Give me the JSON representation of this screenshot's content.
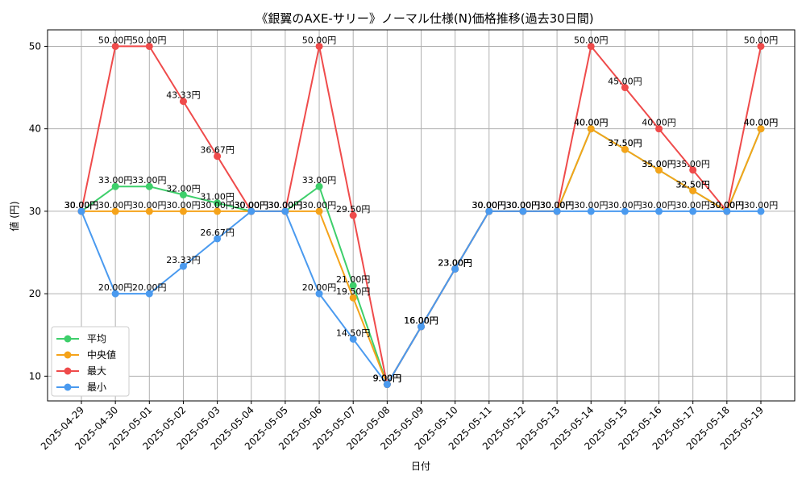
{
  "chart_data": {
    "type": "line",
    "title": "《銀翼のAXE-サリー》ノーマル仕様(N)価格推移(過去30日間)",
    "xlabel": "日付",
    "ylabel": "値 (円)",
    "ylim": [
      7,
      52
    ],
    "yticks": [
      10,
      20,
      30,
      40,
      50
    ],
    "grid": true,
    "legend_position": "lower-left",
    "label_suffix": "円",
    "categories": [
      "2025-04-29",
      "2025-04-30",
      "2025-05-01",
      "2025-05-02",
      "2025-05-03",
      "2025-05-04",
      "2025-05-05",
      "2025-05-06",
      "2025-05-07",
      "2025-05-08",
      "2025-05-09",
      "2025-05-10",
      "2025-05-11",
      "2025-05-12",
      "2025-05-13",
      "2025-05-14",
      "2025-05-15",
      "2025-05-16",
      "2025-05-17",
      "2025-05-18",
      "2025-05-19"
    ],
    "series": [
      {
        "name": "平均",
        "color": "#3ecf6b",
        "values": [
          30.0,
          33.0,
          33.0,
          32.0,
          31.0,
          30.0,
          30.0,
          33.0,
          21.0,
          9.0,
          16.0,
          23.0,
          30.0,
          30.0,
          30.0,
          40.0,
          37.5,
          35.0,
          32.5,
          30.0,
          40.0
        ]
      },
      {
        "name": "中央値",
        "color": "#f5a31a",
        "values": [
          30.0,
          30.0,
          30.0,
          30.0,
          30.0,
          30.0,
          30.0,
          30.0,
          19.5,
          9.0,
          16.0,
          23.0,
          30.0,
          30.0,
          30.0,
          40.0,
          37.5,
          35.0,
          32.5,
          30.0,
          40.0
        ]
      },
      {
        "name": "最大",
        "color": "#ef4b4b",
        "values": [
          30.0,
          50.0,
          50.0,
          43.33,
          36.67,
          30.0,
          30.0,
          50.0,
          29.5,
          9.0,
          16.0,
          23.0,
          30.0,
          30.0,
          30.0,
          50.0,
          45.0,
          40.0,
          35.0,
          30.0,
          50.0
        ]
      },
      {
        "name": "最小",
        "color": "#4a9aef",
        "values": [
          30.0,
          20.0,
          20.0,
          23.33,
          26.67,
          30.0,
          30.0,
          20.0,
          14.5,
          9.0,
          16.0,
          23.0,
          30.0,
          30.0,
          30.0,
          30.0,
          30.0,
          30.0,
          30.0,
          30.0,
          30.0
        ]
      }
    ]
  }
}
